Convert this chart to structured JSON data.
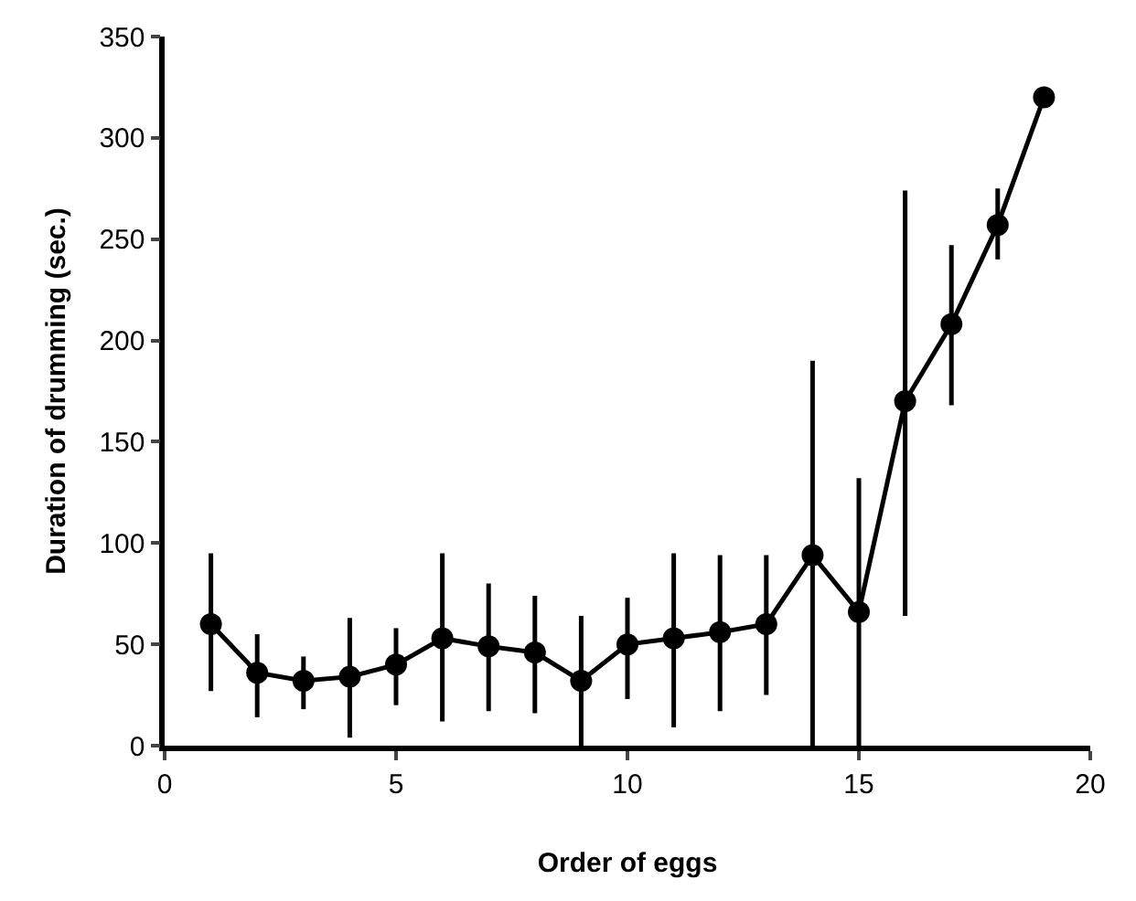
{
  "chart_data": {
    "type": "line",
    "xlabel": "Order of eggs",
    "ylabel": "Duration of drumming (sec.)",
    "x": [
      1,
      2,
      3,
      4,
      5,
      6,
      7,
      8,
      9,
      10,
      11,
      12,
      13,
      14,
      15,
      16,
      17,
      18,
      19
    ],
    "series": [
      {
        "color": "#000000",
        "values": [
          60,
          36,
          32,
          34,
          40,
          53,
          49,
          46,
          32,
          50,
          53,
          56,
          60,
          94,
          66,
          170,
          208,
          257,
          320
        ],
        "errors": [
          [
            27,
            95
          ],
          [
            14,
            55
          ],
          [
            18,
            44
          ],
          [
            4,
            63
          ],
          [
            20,
            58
          ],
          [
            12,
            95
          ],
          [
            17,
            80
          ],
          [
            16,
            74
          ],
          [
            0,
            64
          ],
          [
            23,
            73
          ],
          [
            9,
            95
          ],
          [
            17,
            94
          ],
          [
            25,
            94
          ],
          [
            0,
            190
          ],
          [
            0,
            132
          ],
          [
            64,
            274
          ],
          [
            168,
            247
          ],
          [
            240,
            275
          ],
          null
        ]
      }
    ],
    "xlim": [
      0,
      20
    ],
    "xticks": [
      0,
      5,
      10,
      15,
      20
    ],
    "ylim": [
      0,
      350
    ],
    "yticks": [
      0,
      50,
      100,
      150,
      200,
      250,
      300,
      350
    ],
    "marker": "circle",
    "line_style": "solid"
  }
}
